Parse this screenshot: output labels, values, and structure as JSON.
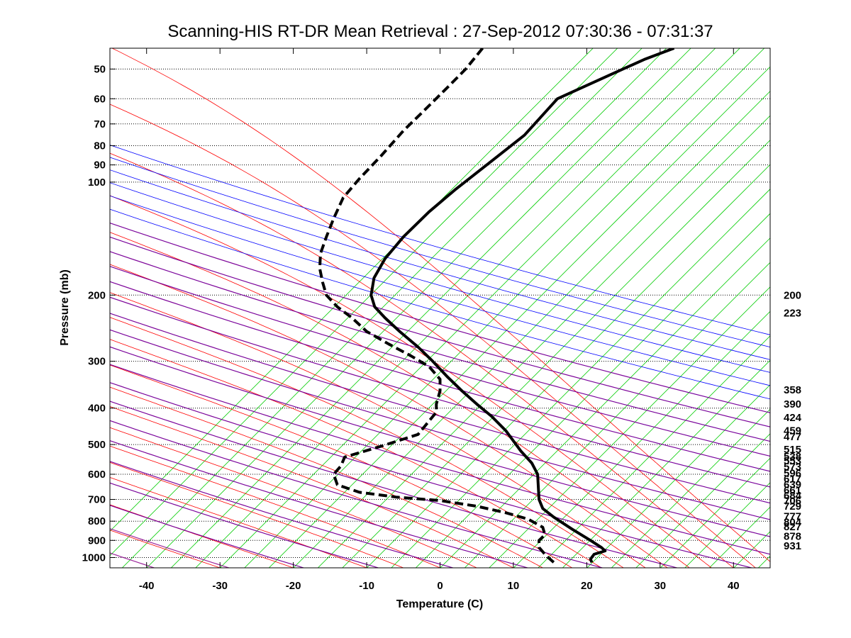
{
  "chart_data": {
    "type": "line",
    "title": "Scanning-HIS RT-DR Mean Retrieval : 27-Sep-2012 07:30:36 - 07:31:37",
    "xlabel": "Temperature (C)",
    "ylabel": "Pressure (mb)",
    "xlim": [
      -45,
      45
    ],
    "ylim": [
      1065,
      44
    ],
    "y_scale": "log",
    "x_ticks": [
      -40,
      -30,
      -20,
      -10,
      0,
      10,
      20,
      30,
      40
    ],
    "y_ticks": [
      50,
      60,
      70,
      80,
      90,
      100,
      200,
      300,
      400,
      500,
      600,
      700,
      800,
      900,
      1000
    ],
    "grid": "horizontal dotted at pressure ticks",
    "right_labels": [
      "200",
      "223",
      "358",
      "390",
      "424",
      "459",
      "477",
      "515",
      "538",
      "553",
      "573",
      "596",
      "617",
      "639",
      "661",
      "684",
      "706",
      "729",
      "777",
      "804",
      "827",
      "878",
      "931"
    ],
    "series": [
      {
        "style": "solid",
        "points": [
          [
            31.9,
            44
          ],
          [
            28,
            47
          ],
          [
            23,
            52
          ],
          [
            16,
            60
          ],
          [
            11.5,
            75
          ],
          [
            7,
            88
          ],
          [
            2,
            105
          ],
          [
            -1.5,
            120
          ],
          [
            -5,
            140
          ],
          [
            -7.5,
            160
          ],
          [
            -9,
            180
          ],
          [
            -9.4,
            200
          ],
          [
            -8.9,
            215
          ],
          [
            -7.5,
            230
          ],
          [
            -5.5,
            250
          ],
          [
            -3,
            275
          ],
          [
            -1,
            300
          ],
          [
            1,
            330
          ],
          [
            3,
            360
          ],
          [
            5,
            390
          ],
          [
            7,
            420
          ],
          [
            9,
            460
          ],
          [
            11,
            520
          ],
          [
            12.5,
            560
          ],
          [
            13.3,
            600
          ],
          [
            13.4,
            650
          ],
          [
            13.5,
            700
          ],
          [
            14,
            740
          ],
          [
            15.5,
            780
          ],
          [
            18,
            840
          ],
          [
            20.5,
            900
          ],
          [
            22,
            940
          ],
          [
            22.5,
            960
          ],
          [
            21,
            980
          ],
          [
            20.5,
            1010
          ],
          [
            20.7,
            1030
          ]
        ]
      },
      {
        "style": "dashed",
        "points": [
          [
            5.8,
            44
          ],
          [
            3.5,
            50
          ],
          [
            1,
            56
          ],
          [
            -2,
            64
          ],
          [
            -5,
            73
          ],
          [
            -8,
            85
          ],
          [
            -11,
            98
          ],
          [
            -13.2,
            110
          ],
          [
            -14.5,
            125
          ],
          [
            -15.5,
            140
          ],
          [
            -16.3,
            155
          ],
          [
            -16.4,
            170
          ],
          [
            -16,
            185
          ],
          [
            -15.5,
            200
          ],
          [
            -14,
            215
          ],
          [
            -12,
            230
          ],
          [
            -10,
            250
          ],
          [
            -7,
            270
          ],
          [
            -4,
            290
          ],
          [
            -1.5,
            310
          ],
          [
            0,
            335
          ],
          [
            0,
            360
          ],
          [
            -0.5,
            390
          ],
          [
            -0.5,
            410
          ],
          [
            -3,
            470
          ],
          [
            -8,
            505
          ],
          [
            -13,
            540
          ],
          [
            -13.5,
            570
          ],
          [
            -14.5,
            600
          ],
          [
            -14,
            640
          ],
          [
            -11,
            670
          ],
          [
            -6,
            690
          ],
          [
            0,
            705
          ],
          [
            5,
            730
          ],
          [
            9,
            760
          ],
          [
            12,
            790
          ],
          [
            14,
            830
          ],
          [
            14.3,
            870
          ],
          [
            13.5,
            900
          ],
          [
            13.5,
            940
          ],
          [
            14.5,
            990
          ],
          [
            15.5,
            1030
          ]
        ]
      }
    ]
  },
  "colors": {
    "dry_adiabats": "#0000ff",
    "moist_adiabats": "#ff0000",
    "mixing_ratio": "#00cc00",
    "background_overlay": "#8b008b",
    "profiles": "#000000"
  }
}
